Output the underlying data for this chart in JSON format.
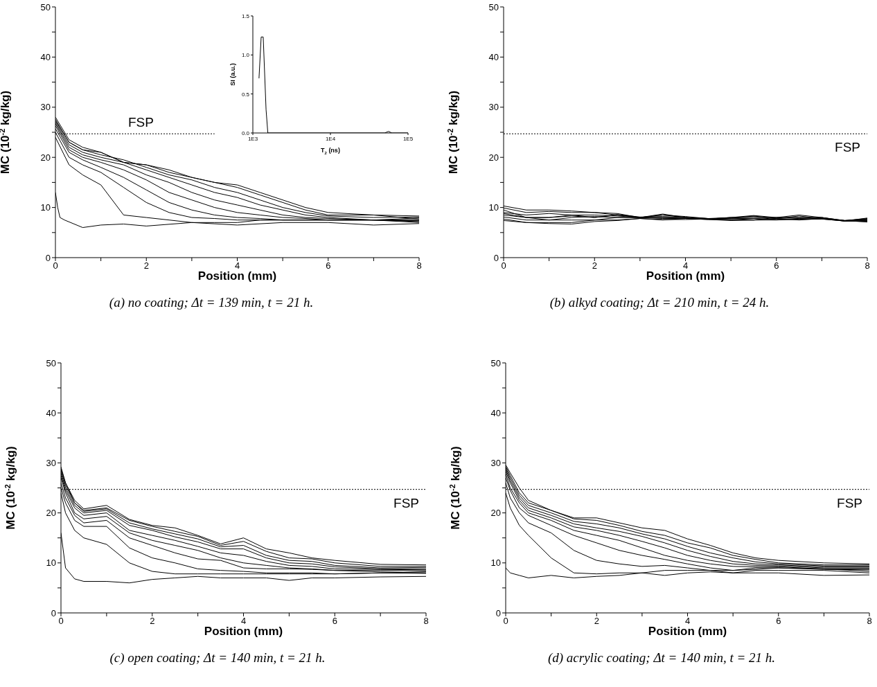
{
  "chart_data": [
    {
      "type": "line",
      "xlabel": "Position (mm)",
      "ylabel": "MC (10$^{-2}$ kg/kg)",
      "xlim": [
        0,
        8
      ],
      "ylim": [
        0,
        50
      ],
      "xticks": [
        0,
        {
          "value": 1,
          "label": null
        },
        2,
        {
          "value": 3,
          "label": null
        },
        4,
        {
          "value": 5,
          "label": null
        },
        6,
        {
          "value": 7,
          "label": null
        },
        8
      ],
      "yticks": [
        0,
        {
          "value": 5,
          "label": null
        },
        10,
        {
          "value": 15,
          "label": null
        },
        20,
        {
          "value": 25,
          "label": null
        },
        30,
        {
          "value": 35,
          "label": null
        },
        40,
        {
          "value": 45,
          "label": null
        },
        50
      ],
      "x": [
        0,
        0.3,
        0.6,
        1,
        1.5,
        2,
        2.5,
        3,
        3.5,
        4,
        4.5,
        5,
        5.5,
        6,
        7,
        8
      ],
      "series": [
        {
          "color": "#000000",
          "x": [
            0,
            3.5
          ],
          "values": [
            24.7,
            24.7
          ],
          "line_style": "dotted"
        },
        {
          "color": "#000000",
          "x": [
            0,
            0.05,
            0.1,
            0.2,
            0.6,
            1,
            1.5,
            2,
            3,
            4,
            5,
            6,
            7,
            8
          ],
          "values": [
            13,
            10,
            8,
            7.5,
            6,
            6.5,
            6.7,
            6.3,
            7,
            6.5,
            7,
            7,
            6.5,
            6.8
          ]
        },
        {
          "color": "#000000",
          "values": [
            24,
            18.5,
            16.5,
            14.5,
            8.5,
            8,
            7.5,
            7,
            7,
            7,
            7.5,
            7.5,
            7.5,
            7.5,
            7.5,
            7.2
          ]
        },
        {
          "color": "#000000",
          "values": [
            25,
            20,
            18.5,
            17,
            14,
            11,
            9,
            8,
            7.8,
            7.5,
            7.5,
            7.5,
            7.5,
            7.5,
            7.5,
            7.6
          ]
        },
        {
          "color": "#000000",
          "values": [
            25.7,
            21,
            19.5,
            18,
            16,
            13.5,
            11,
            9.5,
            8.5,
            8,
            7.8,
            7.5,
            7.5,
            7.5,
            7.5,
            7.3
          ]
        },
        {
          "color": "#000000",
          "values": [
            26.3,
            21.5,
            20,
            19,
            17.5,
            15.5,
            13,
            11.5,
            10,
            9,
            8.5,
            8,
            7.8,
            7.5,
            7.5,
            7.9
          ]
        },
        {
          "color": "#000000",
          "values": [
            26.7,
            22,
            20.5,
            19.5,
            18.5,
            16.5,
            15,
            13,
            11.5,
            10.5,
            9.5,
            8.5,
            8,
            7.8,
            7.5,
            7
          ]
        },
        {
          "color": "#000000",
          "values": [
            27,
            22.5,
            21,
            20,
            19,
            17.5,
            16,
            14.5,
            13,
            12,
            10.5,
            9.5,
            8.5,
            8,
            7.5,
            7.4
          ]
        },
        {
          "color": "#000000",
          "values": [
            27.3,
            23,
            21.5,
            20.5,
            19.5,
            18,
            16.5,
            15.5,
            14,
            13,
            11.5,
            10,
            9,
            8.3,
            8,
            8.1
          ]
        },
        {
          "color": "#000000",
          "values": [
            27.6,
            23,
            21.5,
            21,
            19,
            18.5,
            17,
            16,
            15,
            14,
            12.5,
            11,
            9.5,
            8.5,
            8.5,
            7.7
          ]
        },
        {
          "color": "#000000",
          "values": [
            28,
            23.5,
            22,
            21,
            19,
            18.5,
            17.5,
            16,
            15,
            14.5,
            13,
            11.5,
            10,
            9,
            8.5,
            8.3
          ]
        }
      ],
      "annotations": [
        "FSP",
        "(a) no coating; Δt = 139 min, t = 21 h."
      ]
    },
    {
      "type": "line",
      "xlabel": "T$_{2}$ (ns)",
      "ylabel": "SI (a.u.)",
      "log": "x",
      "xlim": [
        1000,
        100000
      ],
      "ylim": [
        0,
        1.5
      ],
      "xticks": [
        {
          "value": 1000,
          "label": "1E3"
        },
        {
          "value": 10000,
          "label": "1E4"
        },
        {
          "value": 100000,
          "label": "1E5"
        }
      ],
      "yticks": [
        {
          "value": 0,
          "label": "0.0"
        },
        {
          "value": 0.5,
          "label": "0.5"
        },
        {
          "value": 1,
          "label": "1.0"
        },
        {
          "value": 1.5,
          "label": "1.5"
        }
      ],
      "series": [
        {
          "color": "#000000",
          "x": [
            1200,
            1280,
            1360,
            1480,
            1560,
            50000,
            56000,
            62000,
            100000
          ],
          "values": [
            0.7,
            1.23,
            1.23,
            0.3,
            0,
            0,
            0.02,
            0,
            0
          ]
        }
      ]
    },
    {
      "type": "line",
      "xlabel": "Position (mm)",
      "ylabel": "MC (10$^{-2}$ kg/kg)",
      "xlim": [
        0,
        8
      ],
      "ylim": [
        0,
        50
      ],
      "xticks": [
        0,
        {
          "value": 1,
          "label": null
        },
        2,
        {
          "value": 3,
          "label": null
        },
        4,
        {
          "value": 5,
          "label": null
        },
        6,
        {
          "value": 7,
          "label": null
        },
        8
      ],
      "yticks": [
        0,
        {
          "value": 5,
          "label": null
        },
        10,
        {
          "value": 15,
          "label": null
        },
        20,
        {
          "value": 25,
          "label": null
        },
        30,
        {
          "value": 35,
          "label": null
        },
        40,
        {
          "value": 45,
          "label": null
        },
        50
      ],
      "x": [
        0,
        0.5,
        1,
        1.5,
        2,
        2.5,
        3,
        3.5,
        4,
        4.5,
        5,
        5.5,
        6,
        6.5,
        7,
        7.5,
        8
      ],
      "series": [
        {
          "color": "#000000",
          "values": [
            10.3,
            9.5,
            9.5,
            9.3,
            9,
            8.8,
            8,
            8.5,
            8.2,
            7.8,
            8,
            8.2,
            7.8,
            8,
            7.8,
            7.3,
            7.9
          ]
        },
        {
          "color": "#000000",
          "values": [
            9.9,
            9,
            9.2,
            9,
            9,
            8.5,
            8,
            8.7,
            8,
            7.8,
            7.8,
            8.3,
            7.8,
            8.3,
            7.8,
            7.4,
            7.7
          ]
        },
        {
          "color": "#000000",
          "values": [
            9.5,
            8,
            8,
            8.5,
            8,
            8.5,
            8,
            8.5,
            8,
            7.7,
            8,
            8,
            8,
            8,
            8,
            7.4,
            7.5
          ]
        },
        {
          "color": "#000000",
          "values": [
            9,
            8.5,
            8.8,
            8.5,
            8.5,
            8.3,
            8,
            8,
            8,
            7.8,
            7.5,
            7.5,
            8,
            7.8,
            8,
            7.3,
            7.3
          ]
        },
        {
          "color": "#000000",
          "values": [
            8.5,
            8,
            7.5,
            8,
            8.2,
            8,
            8,
            8,
            7.8,
            7.6,
            7.6,
            7.5,
            7.8,
            7.5,
            7.8,
            7.4,
            7.1
          ]
        },
        {
          "color": "#000000",
          "values": [
            8.1,
            7.5,
            7.5,
            7.5,
            7.5,
            8,
            8,
            7.8,
            7.8,
            7.7,
            7.8,
            7.8,
            7.6,
            7.7,
            7.7,
            7.3,
            7.6
          ]
        },
        {
          "color": "#000000",
          "values": [
            7.7,
            7,
            7,
            7,
            7.5,
            7.5,
            7.8,
            7.5,
            7.8,
            7.6,
            7.4,
            7.5,
            7.5,
            7.7,
            7.8,
            7.3,
            7.4
          ]
        },
        {
          "color": "#000000",
          "values": [
            7.4,
            7,
            6.8,
            6.7,
            7.2,
            7.4,
            7.8,
            7.6,
            7.6,
            7.7,
            7.5,
            7.8,
            7.6,
            7.6,
            7.7,
            7.3,
            7.2
          ]
        },
        {
          "color": "#000000",
          "values": [
            8.8,
            8,
            8,
            8.3,
            8,
            8.6,
            8.1,
            8.2,
            8,
            7.7,
            8,
            8.4,
            8,
            8.5,
            8,
            7.4,
            7.8
          ]
        }
      ],
      "ref_lines": [
        {
          "axis": "y",
          "value": 24.7,
          "label": "FSP",
          "line_style": "dotted"
        }
      ],
      "annotations": [
        "(b) alkyd coating; Δt = 210 min, t = 24 h."
      ]
    },
    {
      "type": "line",
      "xlabel": "Position (mm)",
      "ylabel": "MC (10$^{-2}$ kg/kg)",
      "xlim": [
        0,
        8
      ],
      "ylim": [
        0,
        50
      ],
      "xticks": [
        0,
        {
          "value": 1,
          "label": null
        },
        2,
        {
          "value": 3,
          "label": null
        },
        4,
        {
          "value": 5,
          "label": null
        },
        6,
        {
          "value": 7,
          "label": null
        },
        8
      ],
      "yticks": [
        0,
        {
          "value": 5,
          "label": null
        },
        10,
        {
          "value": 15,
          "label": null
        },
        20,
        {
          "value": 25,
          "label": null
        },
        30,
        {
          "value": 35,
          "label": null
        },
        40,
        {
          "value": 45,
          "label": null
        },
        50
      ],
      "x": [
        0,
        0.1,
        0.3,
        0.5,
        1,
        1.5,
        2,
        2.5,
        3,
        3.5,
        4,
        4.5,
        5,
        5.5,
        6,
        7,
        8
      ],
      "series": [
        {
          "color": "#000000",
          "values": [
            16,
            9,
            6.8,
            6.3,
            6.3,
            6,
            6.7,
            7,
            7.3,
            7,
            7,
            7,
            6.5,
            7,
            7,
            7.2,
            7.3
          ]
        },
        {
          "color": "#000000",
          "values": [
            24,
            20,
            16.5,
            15,
            13.7,
            10,
            8.3,
            7.8,
            7.8,
            7.8,
            7.8,
            7.8,
            7.8,
            7.8,
            7.8,
            8,
            7.9
          ]
        },
        {
          "color": "#000000",
          "values": [
            25,
            22,
            18.5,
            17.3,
            17.3,
            13,
            11,
            10,
            8.8,
            8.5,
            8.3,
            8,
            8,
            8,
            7.8,
            8,
            8.2
          ]
        },
        {
          "color": "#000000",
          "values": [
            26,
            23,
            19.5,
            18,
            18.5,
            15,
            13.5,
            12,
            10.8,
            10.5,
            9,
            8.8,
            8.8,
            8.7,
            8.5,
            8.2,
            8
          ]
        },
        {
          "color": "#000000",
          "values": [
            27,
            24,
            20,
            18.8,
            19.3,
            16,
            14.5,
            13.5,
            12.5,
            11,
            10,
            9.5,
            9,
            8.8,
            8.5,
            8.5,
            8.4
          ]
        },
        {
          "color": "#000000",
          "values": [
            27.5,
            24.5,
            21,
            19.5,
            20,
            16.5,
            15.5,
            14.5,
            13.3,
            12,
            11.5,
            10.3,
            9.5,
            9.3,
            8.8,
            8.7,
            8.6
          ]
        },
        {
          "color": "#000000",
          "values": [
            28,
            25,
            21.5,
            20,
            20.5,
            17.5,
            16.5,
            15.2,
            14.2,
            12.8,
            12.8,
            11,
            10,
            9.8,
            9.2,
            8.8,
            8.8
          ]
        },
        {
          "color": "#000000",
          "values": [
            28.4,
            25.5,
            22,
            20.3,
            20.8,
            18,
            16.8,
            15.8,
            14.8,
            13.2,
            13.5,
            11.5,
            10.5,
            10.3,
            9.5,
            9,
            9.1
          ]
        },
        {
          "color": "#000000",
          "values": [
            28.8,
            26,
            22,
            20.5,
            21,
            18.5,
            17.3,
            16.3,
            15.3,
            13.5,
            14.3,
            12.3,
            11,
            10.8,
            10,
            9.3,
            9.3
          ]
        },
        {
          "color": "#000000",
          "values": [
            29.2,
            26,
            22.5,
            20.8,
            21.5,
            18.7,
            17.5,
            17,
            15.5,
            13.8,
            15,
            12.8,
            12,
            11,
            10.5,
            9.7,
            9.6
          ]
        }
      ],
      "ref_lines": [
        {
          "axis": "y",
          "value": 24.7,
          "label": "FSP",
          "line_style": "dotted"
        }
      ],
      "annotations": [
        "(c) open coating; Δt = 140 min, t = 21 h."
      ]
    },
    {
      "type": "line",
      "xlabel": "Position (mm)",
      "ylabel": "MC (10$^{-2}$ kg/kg)",
      "xlim": [
        0,
        8
      ],
      "ylim": [
        0,
        50
      ],
      "xticks": [
        0,
        {
          "value": 1,
          "label": null
        },
        2,
        {
          "value": 3,
          "label": null
        },
        4,
        {
          "value": 5,
          "label": null
        },
        6,
        {
          "value": 7,
          "label": null
        },
        8
      ],
      "yticks": [
        0,
        {
          "value": 5,
          "label": null
        },
        10,
        {
          "value": 15,
          "label": null
        },
        20,
        {
          "value": 25,
          "label": null
        },
        30,
        {
          "value": 35,
          "label": null
        },
        40,
        {
          "value": 45,
          "label": null
        },
        50
      ],
      "x": [
        0,
        0.1,
        0.3,
        0.5,
        1,
        1.5,
        2,
        2.5,
        3,
        3.5,
        4,
        4.5,
        5,
        5.5,
        6,
        7,
        8
      ],
      "series": [
        {
          "color": "#000000",
          "values": [
            9,
            8,
            7.5,
            7,
            7.5,
            7,
            7.3,
            7.5,
            8,
            7.5,
            8,
            8.2,
            8,
            8,
            8,
            7.5,
            7.6
          ]
        },
        {
          "color": "#000000",
          "values": [
            24,
            21,
            17.5,
            15.5,
            11,
            8,
            7.8,
            8,
            8,
            8.5,
            8.5,
            8.5,
            8,
            8.5,
            8.5,
            8.5,
            8
          ]
        },
        {
          "color": "#000000",
          "values": [
            26,
            23,
            20,
            18,
            16,
            12.5,
            10.5,
            9.8,
            9.3,
            9.5,
            9,
            8.5,
            8.5,
            8.7,
            9,
            8.8,
            8.3
          ]
        },
        {
          "color": "#000000",
          "values": [
            27,
            24.5,
            21,
            19.5,
            17.5,
            15.5,
            14,
            12.5,
            11.5,
            10.7,
            9.8,
            9,
            8.5,
            9,
            9,
            8.7,
            8.6
          ]
        },
        {
          "color": "#000000",
          "values": [
            27.8,
            25,
            22,
            20,
            18.5,
            16.5,
            15.5,
            14.5,
            13,
            11.5,
            10.5,
            9.8,
            9.3,
            9.2,
            9.2,
            8.8,
            8.8
          ]
        },
        {
          "color": "#000000",
          "values": [
            28.3,
            26,
            22.5,
            20.5,
            19,
            17.2,
            16.5,
            15.5,
            14.3,
            13,
            11.5,
            10.5,
            9.8,
            9.5,
            9.4,
            9,
            9
          ]
        },
        {
          "color": "#000000",
          "values": [
            28.7,
            26.5,
            23,
            21,
            19.5,
            17.8,
            17,
            16.3,
            15.3,
            14,
            12.5,
            11.3,
            10.3,
            9.8,
            9.6,
            9.2,
            9.2
          ]
        },
        {
          "color": "#000000",
          "values": [
            29,
            27,
            23.5,
            21.5,
            20,
            18.3,
            17.8,
            17,
            15.8,
            14.8,
            13.3,
            12,
            11,
            10.2,
            9.8,
            9.4,
            9.4
          ]
        },
        {
          "color": "#000000",
          "values": [
            29.3,
            27.5,
            24,
            22,
            20.5,
            18.8,
            18.5,
            17.5,
            16.3,
            15.5,
            14,
            13,
            11.5,
            10.7,
            10,
            9.6,
            9.6
          ]
        },
        {
          "color": "#000000",
          "values": [
            29.6,
            28,
            25,
            22.5,
            20.5,
            19,
            19,
            18,
            17,
            16.5,
            14.8,
            13.5,
            12,
            11,
            10.5,
            10,
            9.8
          ]
        }
      ],
      "ref_lines": [
        {
          "axis": "y",
          "value": 24.7,
          "label": "FSP",
          "line_style": "dotted"
        }
      ],
      "annotations": [
        "(d) acrylic coating; Δt = 140 min, t = 21 h."
      ]
    }
  ]
}
